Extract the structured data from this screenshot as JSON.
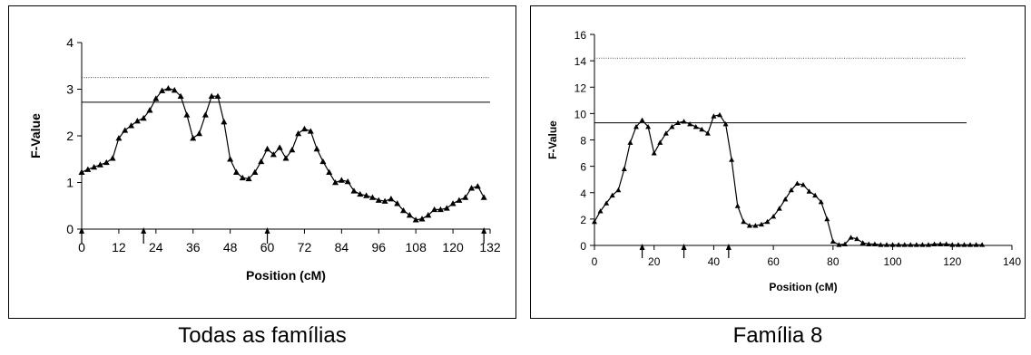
{
  "captions": {
    "left": "Todas as famílias",
    "right": "Família 8"
  },
  "chart_data": [
    {
      "type": "line",
      "marker": "triangle",
      "title": "",
      "xlabel": "Position (cM)",
      "ylabel": "F-Value",
      "xlim": [
        0,
        132
      ],
      "ylim": [
        0,
        4
      ],
      "xticks": [
        "0",
        "12",
        "24",
        "36",
        "48",
        "60",
        "72",
        "84",
        "96",
        "108",
        "120",
        "132"
      ],
      "yticks": [
        "0",
        "1",
        "2",
        "3",
        "4"
      ],
      "thresholds": [
        {
          "value": 3.25,
          "style": "dotted"
        },
        {
          "value": 2.72,
          "style": "solid"
        }
      ],
      "marker_arrows_x": [
        0,
        20,
        60,
        130
      ],
      "color": "#000000",
      "series": [
        {
          "x": [
            0,
            2,
            4,
            6,
            8,
            10,
            12,
            14,
            16,
            18,
            20,
            22,
            24,
            26,
            28,
            30,
            32,
            34,
            36,
            38,
            40,
            42,
            44,
            46,
            48,
            50,
            52,
            54,
            56,
            58,
            60,
            62,
            64,
            66,
            68,
            70,
            72,
            74,
            76,
            78,
            80,
            82,
            84,
            86,
            88,
            90,
            92,
            94,
            96,
            98,
            100,
            102,
            104,
            106,
            108,
            110,
            112,
            114,
            116,
            118,
            120,
            122,
            124,
            126,
            128,
            130
          ],
          "y": [
            1.22,
            1.28,
            1.33,
            1.38,
            1.43,
            1.52,
            1.95,
            2.12,
            2.22,
            2.32,
            2.38,
            2.55,
            2.8,
            2.97,
            3.02,
            2.98,
            2.85,
            2.45,
            1.95,
            2.05,
            2.45,
            2.85,
            2.85,
            2.3,
            1.5,
            1.22,
            1.1,
            1.08,
            1.22,
            1.45,
            1.72,
            1.6,
            1.75,
            1.52,
            1.7,
            2.05,
            2.15,
            2.1,
            1.72,
            1.45,
            1.22,
            1.0,
            1.05,
            1.02,
            0.82,
            0.75,
            0.72,
            0.68,
            0.62,
            0.6,
            0.65,
            0.55,
            0.4,
            0.3,
            0.2,
            0.22,
            0.3,
            0.42,
            0.42,
            0.45,
            0.55,
            0.62,
            0.68,
            0.88,
            0.92,
            0.68
          ]
        }
      ]
    },
    {
      "type": "line",
      "marker": "triangle",
      "title": "",
      "xlabel": "Position (cM)",
      "ylabel": "F-Value",
      "xlim": [
        0,
        140
      ],
      "ylim": [
        0,
        16
      ],
      "xticks": [
        "0",
        "20",
        "40",
        "60",
        "80",
        "100",
        "120",
        "140"
      ],
      "yticks": [
        "0",
        "2",
        "4",
        "6",
        "8",
        "10",
        "12",
        "14",
        "16"
      ],
      "thresholds": [
        {
          "value": 14.2,
          "style": "dotted"
        },
        {
          "value": 9.3,
          "style": "solid"
        }
      ],
      "marker_arrows_x": [
        16,
        30,
        45
      ],
      "color": "#000000",
      "series": [
        {
          "x": [
            0,
            2,
            4,
            6,
            8,
            10,
            12,
            14,
            16,
            18,
            20,
            22,
            24,
            26,
            28,
            30,
            32,
            34,
            36,
            38,
            40,
            42,
            44,
            46,
            48,
            50,
            52,
            54,
            56,
            58,
            60,
            62,
            64,
            66,
            68,
            70,
            72,
            74,
            76,
            78,
            80,
            82,
            84,
            86,
            88,
            90,
            92,
            94,
            96,
            98,
            100,
            102,
            104,
            106,
            108,
            110,
            112,
            114,
            116,
            118,
            120,
            122,
            124,
            126,
            128,
            130
          ],
          "y": [
            1.8,
            2.6,
            3.2,
            3.8,
            4.2,
            5.8,
            7.8,
            9.0,
            9.5,
            9.0,
            7.0,
            7.8,
            8.5,
            9.0,
            9.3,
            9.4,
            9.2,
            9.0,
            8.8,
            8.5,
            9.8,
            9.9,
            9.2,
            6.5,
            3.0,
            1.8,
            1.5,
            1.5,
            1.6,
            1.8,
            2.2,
            2.8,
            3.5,
            4.2,
            4.7,
            4.6,
            4.1,
            3.8,
            3.3,
            2.0,
            0.3,
            0.05,
            0.1,
            0.6,
            0.5,
            0.2,
            0.1,
            0.1,
            0.05,
            0.05,
            0.05,
            0.05,
            0.05,
            0.05,
            0.05,
            0.05,
            0.05,
            0.1,
            0.1,
            0.1,
            0.05,
            0.05,
            0.05,
            0.05,
            0.05,
            0.05
          ]
        }
      ]
    }
  ]
}
